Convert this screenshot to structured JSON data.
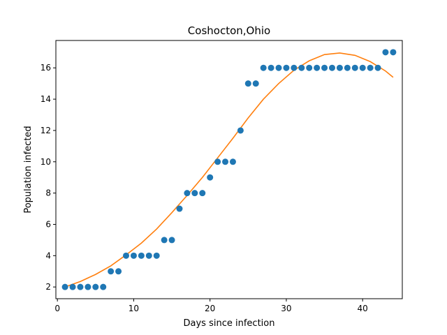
{
  "chart_data": {
    "type": "scatter",
    "title": "Coshocton,Ohio",
    "xlabel": "Days since infection",
    "ylabel": "Population infected",
    "xlim": [
      -0.2,
      45.2
    ],
    "ylim": [
      1.25,
      17.75
    ],
    "xticks": [
      0,
      10,
      20,
      30,
      40
    ],
    "yticks": [
      2,
      4,
      6,
      8,
      10,
      12,
      14,
      16
    ],
    "grid": false,
    "colors": {
      "points": "#1f77b4",
      "fit": "#ff7f0e"
    },
    "series": [
      {
        "kind": "scatter",
        "x": [
          1,
          2,
          3,
          4,
          5,
          6,
          7,
          8,
          9,
          10,
          11,
          12,
          13,
          14,
          15,
          16,
          17,
          18,
          19,
          20,
          21,
          22,
          23,
          24,
          25,
          26,
          27,
          28,
          29,
          30,
          31,
          32,
          33,
          34,
          35,
          36,
          37,
          38,
          39,
          40,
          41,
          42,
          43,
          44
        ],
        "y": [
          2,
          2,
          2,
          2,
          2,
          2,
          3,
          3,
          4,
          4,
          4,
          4,
          4,
          5,
          5,
          7,
          8,
          8,
          8,
          9,
          10,
          10,
          10,
          12,
          15,
          15,
          16,
          16,
          16,
          16,
          16,
          16,
          16,
          16,
          16,
          16,
          16,
          16,
          16,
          16,
          16,
          16,
          17,
          17
        ]
      },
      {
        "kind": "line",
        "x": [
          1,
          3,
          5,
          7,
          9,
          11,
          13,
          15,
          17,
          19,
          21,
          23,
          25,
          27,
          29,
          31,
          33,
          35,
          37,
          39,
          41,
          43,
          44
        ],
        "y": [
          2.0,
          2.35,
          2.8,
          3.35,
          4.05,
          4.8,
          5.7,
          6.75,
          7.85,
          9.0,
          10.25,
          11.5,
          12.8,
          14.0,
          15.0,
          15.85,
          16.45,
          16.85,
          16.95,
          16.8,
          16.4,
          15.8,
          15.4
        ]
      }
    ]
  }
}
